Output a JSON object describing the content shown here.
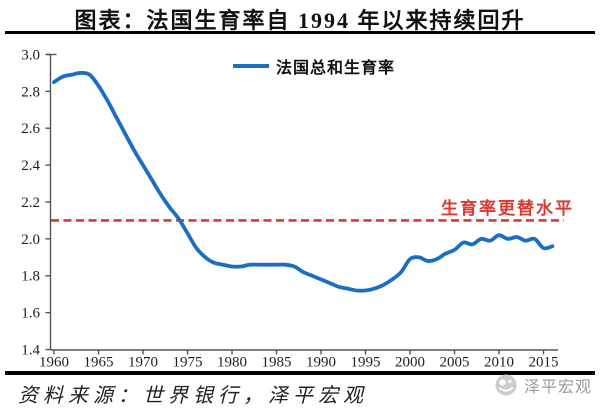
{
  "title": "图表：法国生育率自 1994 年以来持续回升",
  "legend": {
    "label": "法国总和生育率",
    "line_color": "#1B6EC2"
  },
  "annotation": {
    "label": "生育率更替水平",
    "color": "#D93A32"
  },
  "source_note": "资料来源：世界银行，泽平宏观",
  "watermark": {
    "label": "泽平宏观",
    "color": "#9B9B9B"
  },
  "axis_color": "#555555",
  "tick_label_color": "#1f1f1f",
  "chart_data": {
    "type": "line",
    "title": "图表：法国生育率自 1994 年以来持续回升",
    "xlabel": "",
    "ylabel": "",
    "grid": false,
    "legend_position": "top-center",
    "xlim": [
      1959.6,
      2016.5
    ],
    "ylim": [
      1.4,
      3.0
    ],
    "yticks": [
      1.4,
      1.6,
      1.8,
      2.0,
      2.2,
      2.4,
      2.6,
      2.8,
      3.0
    ],
    "xticks": [
      1960,
      1965,
      1970,
      1975,
      1980,
      1985,
      1990,
      1995,
      2000,
      2005,
      2010,
      2015
    ],
    "x": [
      1960,
      1961,
      1962,
      1963,
      1964,
      1965,
      1966,
      1967,
      1968,
      1969,
      1970,
      1971,
      1972,
      1973,
      1974,
      1975,
      1976,
      1977,
      1978,
      1979,
      1980,
      1981,
      1982,
      1983,
      1984,
      1985,
      1986,
      1987,
      1988,
      1989,
      1990,
      1991,
      1992,
      1993,
      1994,
      1995,
      1996,
      1997,
      1998,
      1999,
      2000,
      2001,
      2002,
      2003,
      2004,
      2005,
      2006,
      2007,
      2008,
      2009,
      2010,
      2011,
      2012,
      2013,
      2014,
      2015,
      2016
    ],
    "series": [
      {
        "name": "法国总和生育率",
        "color": "#1B6EC2",
        "values": [
          2.85,
          2.88,
          2.89,
          2.9,
          2.89,
          2.83,
          2.75,
          2.66,
          2.57,
          2.48,
          2.4,
          2.32,
          2.24,
          2.17,
          2.11,
          2.03,
          1.95,
          1.9,
          1.87,
          1.86,
          1.85,
          1.85,
          1.86,
          1.86,
          1.86,
          1.86,
          1.86,
          1.85,
          1.82,
          1.8,
          1.78,
          1.76,
          1.74,
          1.73,
          1.72,
          1.72,
          1.73,
          1.75,
          1.78,
          1.82,
          1.89,
          1.9,
          1.88,
          1.89,
          1.92,
          1.94,
          1.98,
          1.97,
          2.0,
          1.99,
          2.02,
          2.0,
          2.01,
          1.99,
          2.0,
          1.95,
          1.96
        ]
      }
    ],
    "reference_line": {
      "y": 2.1,
      "label": "生育率更替水平",
      "style": "dashed",
      "color": "#D93A32"
    }
  }
}
